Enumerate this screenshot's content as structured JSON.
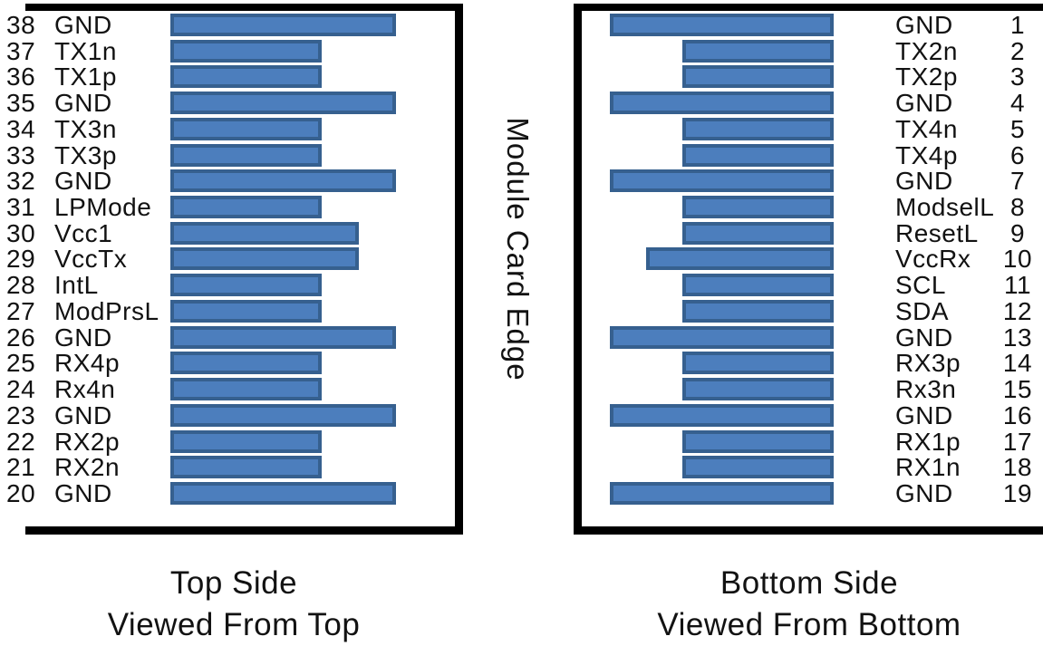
{
  "colors": {
    "bar_fill": "#4C7EBD",
    "bar_border": "#36608F",
    "box_border": "#000000"
  },
  "center_label": "Module Card Edge",
  "left_panel": {
    "caption_line1": "Top Side",
    "caption_line2": "Viewed From Top",
    "bar_widths": {
      "gnd": 249,
      "signal": 167,
      "vcc": 208
    },
    "pins": [
      {
        "num": "38",
        "label": "GND",
        "type": "gnd"
      },
      {
        "num": "37",
        "label": "TX1n",
        "type": "signal"
      },
      {
        "num": "36",
        "label": "TX1p",
        "type": "signal"
      },
      {
        "num": "35",
        "label": "GND",
        "type": "gnd"
      },
      {
        "num": "34",
        "label": "TX3n",
        "type": "signal"
      },
      {
        "num": "33",
        "label": "TX3p",
        "type": "signal"
      },
      {
        "num": "32",
        "label": "GND",
        "type": "gnd"
      },
      {
        "num": "31",
        "label": "LPMode",
        "type": "signal"
      },
      {
        "num": "30",
        "label": "Vcc1",
        "type": "vcc"
      },
      {
        "num": "29",
        "label": "VccTx",
        "type": "vcc"
      },
      {
        "num": "28",
        "label": "IntL",
        "type": "signal"
      },
      {
        "num": "27",
        "label": "ModPrsL",
        "type": "signal"
      },
      {
        "num": "26",
        "label": "GND",
        "type": "gnd"
      },
      {
        "num": "25",
        "label": "RX4p",
        "type": "signal"
      },
      {
        "num": "24",
        "label": "Rx4n",
        "type": "signal"
      },
      {
        "num": "23",
        "label": "GND",
        "type": "gnd"
      },
      {
        "num": "22",
        "label": "RX2p",
        "type": "signal"
      },
      {
        "num": "21",
        "label": "RX2n",
        "type": "signal"
      },
      {
        "num": "20",
        "label": "GND",
        "type": "gnd"
      }
    ]
  },
  "right_panel": {
    "caption_line1": "Bottom Side",
    "caption_line2": "Viewed From Bottom",
    "bar_widths": {
      "gnd": 247,
      "signal": 167,
      "vcc": 207
    },
    "pins": [
      {
        "num": "1",
        "label": "GND",
        "type": "gnd"
      },
      {
        "num": "2",
        "label": "TX2n",
        "type": "signal"
      },
      {
        "num": "3",
        "label": "TX2p",
        "type": "signal"
      },
      {
        "num": "4",
        "label": "GND",
        "type": "gnd"
      },
      {
        "num": "5",
        "label": "TX4n",
        "type": "signal"
      },
      {
        "num": "6",
        "label": "TX4p",
        "type": "signal"
      },
      {
        "num": "7",
        "label": "GND",
        "type": "gnd"
      },
      {
        "num": "8",
        "label": "ModselL",
        "type": "signal"
      },
      {
        "num": "9",
        "label": "ResetL",
        "type": "signal"
      },
      {
        "num": "10",
        "label": "VccRx",
        "type": "vcc"
      },
      {
        "num": "11",
        "label": "SCL",
        "type": "signal"
      },
      {
        "num": "12",
        "label": "SDA",
        "type": "signal"
      },
      {
        "num": "13",
        "label": "GND",
        "type": "gnd"
      },
      {
        "num": "14",
        "label": "RX3p",
        "type": "signal"
      },
      {
        "num": "15",
        "label": "Rx3n",
        "type": "signal"
      },
      {
        "num": "16",
        "label": "GND",
        "type": "gnd"
      },
      {
        "num": "17",
        "label": "RX1p",
        "type": "signal"
      },
      {
        "num": "18",
        "label": "RX1n",
        "type": "signal"
      },
      {
        "num": "19",
        "label": "GND",
        "type": "gnd"
      }
    ]
  }
}
